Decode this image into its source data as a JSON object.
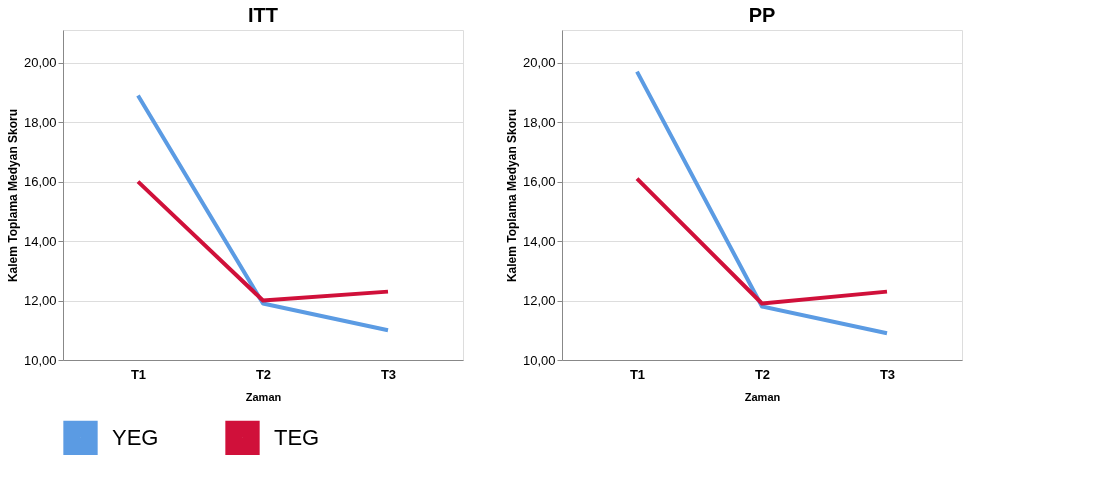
{
  "chart_data": [
    {
      "type": "line",
      "title": "ITT",
      "xlabel": "Zaman",
      "ylabel": "Kalem Toplama Medyan Skoru",
      "categories": [
        "T1",
        "T2",
        "T3"
      ],
      "series": [
        {
          "name": "YEG",
          "color": "#5b9be3",
          "values": [
            18.9,
            11.9,
            11.0
          ]
        },
        {
          "name": "TEG",
          "color": "#d0103a",
          "values": [
            16.0,
            12.0,
            12.3
          ]
        }
      ],
      "ylim": [
        10,
        21.1
      ],
      "yticks": [
        {
          "value": 10,
          "label": "10,00"
        },
        {
          "value": 12,
          "label": "12,00"
        },
        {
          "value": 14,
          "label": "14,00"
        },
        {
          "value": 16,
          "label": "16,00"
        },
        {
          "value": 18,
          "label": "18,00"
        },
        {
          "value": 20,
          "label": "20,00"
        }
      ],
      "grid": "y",
      "legend": "bottom",
      "line_style": "solid"
    },
    {
      "type": "line",
      "title": "PP",
      "xlabel": "Zaman",
      "ylabel": "Kalem Toplama Medyan Skoru",
      "categories": [
        "T1",
        "T2",
        "T3"
      ],
      "series": [
        {
          "color": "#5b9be3",
          "values": [
            19.7,
            11.8,
            10.9
          ]
        },
        {
          "color": "#d0103a",
          "values": [
            16.1,
            11.9,
            12.3
          ]
        }
      ],
      "ylim": [
        10,
        21.1
      ],
      "yticks": [
        {
          "value": 10,
          "label": "10,00"
        },
        {
          "value": 12,
          "label": "12,00"
        },
        {
          "value": 14,
          "label": "14,00"
        },
        {
          "value": 16,
          "label": "16,00"
        },
        {
          "value": 18,
          "label": "18,00"
        },
        {
          "value": 20,
          "label": "20,00"
        }
      ],
      "grid": "y",
      "line_style": "solid"
    }
  ]
}
